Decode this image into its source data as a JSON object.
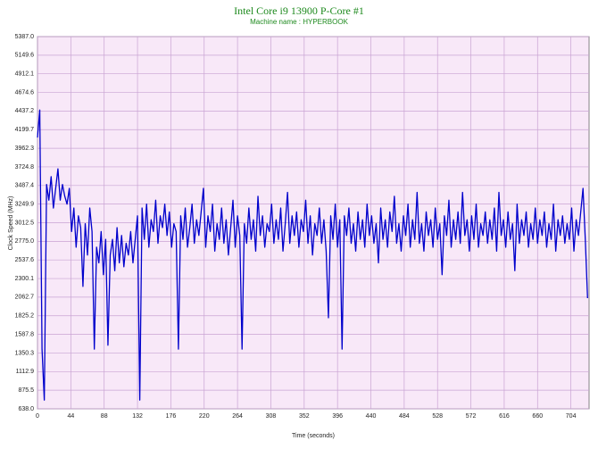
{
  "chart_data": {
    "type": "line",
    "title": "Intel Core i9 13900 P-Core #1",
    "subtitle": "Machine name : HYPERBOOK",
    "xlabel": "Time (seconds)",
    "ylabel": "Clock Speed (MHz)",
    "grid": true,
    "xlim": [
      0,
      728
    ],
    "xticks": [
      0,
      44,
      88,
      132,
      176,
      220,
      264,
      308,
      352,
      396,
      440,
      484,
      528,
      572,
      616,
      660,
      704
    ],
    "ylim": [
      638,
      5387
    ],
    "yticks": [
      {
        "value": 638,
        "label": "638.0"
      },
      875.5,
      1112.9,
      1350.3,
      1587.8,
      1825.2,
      2062.7,
      2300.1,
      2537.6,
      {
        "value": 2775,
        "label": "2775.0"
      },
      3012.5,
      3249.9,
      3487.4,
      3724.8,
      3962.3,
      4199.7,
      4437.2,
      4674.6,
      4912.1,
      5149.6,
      {
        "value": 5387,
        "label": "5387.0"
      }
    ],
    "x": [
      0,
      3,
      6,
      9,
      12,
      15,
      18,
      21,
      24,
      27,
      30,
      33,
      36,
      39,
      42,
      45,
      48,
      51,
      54,
      57,
      60,
      63,
      66,
      69,
      72,
      75,
      78,
      81,
      84,
      87,
      90,
      93,
      96,
      99,
      102,
      105,
      108,
      111,
      114,
      117,
      120,
      123,
      126,
      129,
      132,
      135,
      138,
      141,
      144,
      147,
      150,
      153,
      156,
      159,
      162,
      165,
      168,
      171,
      174,
      177,
      180,
      183,
      186,
      189,
      192,
      195,
      198,
      201,
      204,
      207,
      210,
      213,
      216,
      219,
      222,
      225,
      228,
      231,
      234,
      237,
      240,
      243,
      246,
      249,
      252,
      255,
      258,
      261,
      264,
      267,
      270,
      273,
      276,
      279,
      282,
      285,
      288,
      291,
      294,
      297,
      300,
      303,
      306,
      309,
      312,
      315,
      318,
      321,
      324,
      327,
      330,
      333,
      336,
      339,
      342,
      345,
      348,
      351,
      354,
      357,
      360,
      363,
      366,
      369,
      372,
      375,
      378,
      381,
      384,
      387,
      390,
      393,
      396,
      399,
      402,
      405,
      408,
      411,
      414,
      417,
      420,
      423,
      426,
      429,
      432,
      435,
      438,
      441,
      444,
      447,
      450,
      453,
      456,
      459,
      462,
      465,
      468,
      471,
      474,
      477,
      480,
      483,
      486,
      489,
      492,
      495,
      498,
      501,
      504,
      507,
      510,
      513,
      516,
      519,
      522,
      525,
      528,
      531,
      534,
      537,
      540,
      543,
      546,
      549,
      552,
      555,
      558,
      561,
      564,
      567,
      570,
      573,
      576,
      579,
      582,
      585,
      588,
      591,
      594,
      597,
      600,
      603,
      606,
      609,
      612,
      615,
      618,
      621,
      624,
      627,
      630,
      633,
      636,
      639,
      642,
      645,
      648,
      651,
      654,
      657,
      660,
      663,
      666,
      669,
      672,
      675,
      678,
      681,
      684,
      687,
      690,
      693,
      696,
      699,
      702,
      705,
      708,
      711,
      714,
      717,
      720,
      723,
      726
    ],
    "series": [
      {
        "color": "#0000cc",
        "values": [
          4100,
          4450,
          1400,
          750,
          3500,
          3300,
          3600,
          3200,
          3450,
          3700,
          3300,
          3500,
          3350,
          3250,
          3450,
          2900,
          3200,
          2700,
          3100,
          2950,
          2200,
          3000,
          2600,
          3200,
          2900,
          1400,
          2700,
          2500,
          2900,
          2350,
          2800,
          1450,
          2600,
          2800,
          2400,
          2950,
          2500,
          2850,
          2450,
          2750,
          2600,
          2900,
          2500,
          2800,
          3100,
          750,
          3200,
          2800,
          3250,
          2700,
          3050,
          2900,
          3300,
          2750,
          3100,
          2950,
          3250,
          2850,
          3150,
          2700,
          3000,
          2900,
          1400,
          3100,
          2800,
          3200,
          2700,
          2950,
          3250,
          2750,
          3050,
          2850,
          3150,
          3450,
          2700,
          3100,
          2900,
          3250,
          2650,
          3000,
          2800,
          3200,
          2750,
          3050,
          2600,
          2950,
          3300,
          2700,
          3100,
          2850,
          1400,
          3000,
          2750,
          3200,
          2800,
          3050,
          2650,
          3350,
          2850,
          3100,
          2700,
          3000,
          2900,
          3250,
          2750,
          3050,
          2800,
          3200,
          2650,
          3000,
          3400,
          2750,
          3100,
          2850,
          3150,
          2700,
          3050,
          2900,
          3300,
          2750,
          3100,
          2600,
          3000,
          2850,
          3200,
          2750,
          3050,
          2650,
          1800,
          3100,
          2800,
          3250,
          2700,
          3050,
          1400,
          3100,
          2850,
          3200,
          2750,
          3000,
          2650,
          3150,
          2800,
          3050,
          2700,
          3250,
          2850,
          3100,
          2750,
          3000,
          2500,
          3200,
          2800,
          3050,
          2700,
          3150,
          2900,
          3350,
          2750,
          3000,
          2650,
          3100,
          2850,
          3250,
          2700,
          3050,
          2800,
          3400,
          2750,
          3000,
          2650,
          3150,
          2850,
          3050,
          2700,
          3200,
          2800,
          3000,
          2350,
          3100,
          2850,
          3300,
          2700,
          3050,
          2800,
          3150,
          2750,
          3400,
          2850,
          3050,
          2650,
          3100,
          2800,
          3250,
          2700,
          3000,
          2850,
          3150,
          2750,
          3050,
          2800,
          3200,
          2650,
          3400,
          2850,
          3050,
          2700,
          3150,
          2800,
          3000,
          2400,
          3250,
          2750,
          3050,
          2850,
          3150,
          2700,
          3000,
          2800,
          3200,
          2750,
          3050,
          2850,
          3150,
          2700,
          3000,
          2800,
          3250,
          2650,
          3050,
          2850,
          3100,
          2750,
          3000,
          2800,
          3200,
          2650,
          3050,
          2850,
          3150,
          3450,
          2800,
          2050
        ]
      }
    ]
  }
}
